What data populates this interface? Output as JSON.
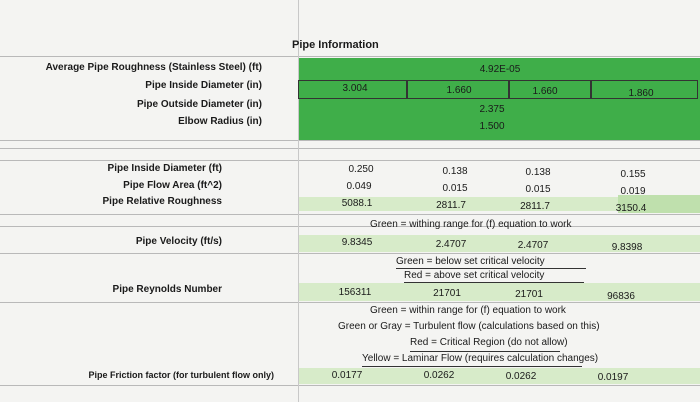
{
  "title": "Pipe Information",
  "labels": {
    "roughness": "Average Pipe Roughness (Stainless Steel) (ft)",
    "inside_diameter_in": "Pipe Inside Diameter (in)",
    "outside_diameter_in": "Pipe Outside Diameter (in)",
    "elbow_radius": "Elbow Radius (in)",
    "inside_diameter_ft": "Pipe Inside Diameter (ft)",
    "flow_area": "Pipe Flow Area (ft^2)",
    "relative_roughness": "Pipe Relative Roughness",
    "velocity": "Pipe Velocity (ft/s)",
    "reynolds": "Pipe Reynolds Number",
    "friction": "Pipe Friction factor (for turbulent flow only)"
  },
  "values": {
    "roughness": "4.92E-05",
    "inside_diameter_in": [
      "3.004",
      "1.660",
      "1.660",
      "1.860"
    ],
    "outside_diameter_in": "2.375",
    "elbow_radius": "1.500",
    "inside_diameter_ft": [
      "0.250",
      "0.138",
      "0.138",
      "0.155"
    ],
    "flow_area": [
      "0.049",
      "0.015",
      "0.015",
      "0.019"
    ],
    "relative_roughness": [
      "5088.1",
      "2811.7",
      "2811.7",
      "3150.4"
    ],
    "velocity": [
      "9.8345",
      "2.4707",
      "2.4707",
      "9.8398"
    ],
    "reynolds": [
      "156311",
      "21701",
      "21701",
      "96836"
    ],
    "friction": [
      "0.0177",
      "0.0262",
      "0.0262",
      "0.0197"
    ]
  },
  "notes": {
    "velocity_green": "Green = withing range for (f) equation to work",
    "reynolds_green": "Green = below set critical velocity",
    "reynolds_red": "Red = above set critical velocity",
    "friction_green": "Green = within range for (f) equation to work",
    "friction_gray": "Green or Gray = Turbulent flow (calculations based on this)",
    "friction_red": "Red = Critical Region (do not allow)",
    "friction_yellow": "Yellow = Laminar Flow (requires calculation changes)"
  },
  "colors": {
    "green": "#3fae49",
    "light_green": "#d7ebc9"
  }
}
